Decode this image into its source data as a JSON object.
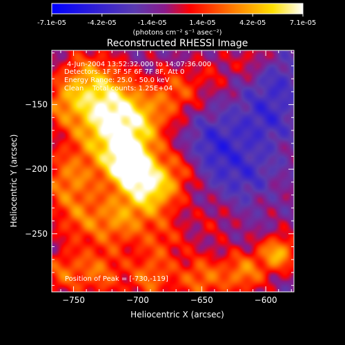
{
  "colorbar": {
    "tick_labels": [
      "-7.1e-05",
      "-4.2e-05",
      "-1.4e-05",
      "1.4e-05",
      "4.2e-05",
      "7.1e-05"
    ],
    "unit_label": "(photons cm⁻² s⁻¹ asec⁻²)",
    "range": [
      -7.1e-05,
      7.1e-05
    ]
  },
  "chart_data": {
    "type": "heatmap",
    "title": "Reconstructed RHESSI Image",
    "xlabel": "Heliocentric X (arcsec)",
    "ylabel": "Heliocentric Y (arcsec)",
    "xlim": [
      -767,
      -578
    ],
    "ylim": [
      -295,
      -108
    ],
    "x_ticks": [
      -750,
      -700,
      -650,
      -600
    ],
    "y_ticks": [
      -250,
      -200,
      -150
    ],
    "x_tick_labels": [
      "−750",
      "−700",
      "−650",
      "−600"
    ],
    "y_tick_labels": [
      "−250",
      "−200",
      "−150"
    ],
    "annotations": [
      "4-Jun-2004 13:52:32.000 to 14:07:36.000",
      "Detectors: 1F 3F 5F 6F 7F 8F, Att 0",
      "Energy Range: 25.0 - 50.0 keV",
      "Clean    Total counts: 1.25E+04"
    ],
    "peak_label": "Position of Peak = [-730,-119]",
    "peak": [
      -730,
      -119
    ],
    "colormap": "rainbow-hot (blue-purple-red-orange-yellow-white)",
    "sources": [
      {
        "x": -708,
        "y": -195,
        "amp": 1.0,
        "r": 14
      },
      {
        "x": -690,
        "y": -215,
        "amp": 0.9,
        "r": 15
      },
      {
        "x": -728,
        "y": -170,
        "amp": 0.65,
        "r": 20
      },
      {
        "x": -718,
        "y": -150,
        "amp": 0.6,
        "r": 18
      },
      {
        "x": -740,
        "y": -130,
        "amp": 0.55,
        "r": 16
      },
      {
        "x": -755,
        "y": -210,
        "amp": 0.55,
        "r": 16
      },
      {
        "x": -745,
        "y": -240,
        "amp": 0.4,
        "r": 14
      },
      {
        "x": -715,
        "y": -240,
        "amp": 0.55,
        "r": 15
      },
      {
        "x": -680,
        "y": -255,
        "amp": 0.35,
        "r": 14
      },
      {
        "x": -695,
        "y": -165,
        "amp": 0.5,
        "r": 15
      },
      {
        "x": -670,
        "y": -140,
        "amp": 0.45,
        "r": 14
      },
      {
        "x": -665,
        "y": -200,
        "amp": 0.35,
        "r": 14
      },
      {
        "x": -730,
        "y": -280,
        "amp": 0.5,
        "r": 14
      },
      {
        "x": -760,
        "y": -280,
        "amp": 0.45,
        "r": 12
      },
      {
        "x": -690,
        "y": -285,
        "amp": 0.5,
        "r": 13
      },
      {
        "x": -650,
        "y": -285,
        "amp": 0.55,
        "r": 13
      },
      {
        "x": -617,
        "y": -280,
        "amp": 0.6,
        "r": 12
      },
      {
        "x": -590,
        "y": -265,
        "amp": 0.75,
        "r": 10
      },
      {
        "x": -640,
        "y": -240,
        "amp": 0.2,
        "r": 12
      },
      {
        "x": -600,
        "y": -220,
        "amp": 0.15,
        "r": 12
      },
      {
        "x": -760,
        "y": -150,
        "amp": 0.4,
        "r": 12
      },
      {
        "x": -640,
        "y": -125,
        "amp": 0.2,
        "r": 12
      },
      {
        "x": -610,
        "y": -115,
        "amp": 0.25,
        "r": 10
      },
      {
        "x": -640,
        "y": -185,
        "amp": -0.45,
        "r": 18
      },
      {
        "x": -600,
        "y": -160,
        "amp": -0.35,
        "r": 16
      },
      {
        "x": -610,
        "y": -210,
        "amp": -0.3,
        "r": 16
      },
      {
        "x": -590,
        "y": -130,
        "amp": -0.25,
        "r": 14
      }
    ]
  }
}
